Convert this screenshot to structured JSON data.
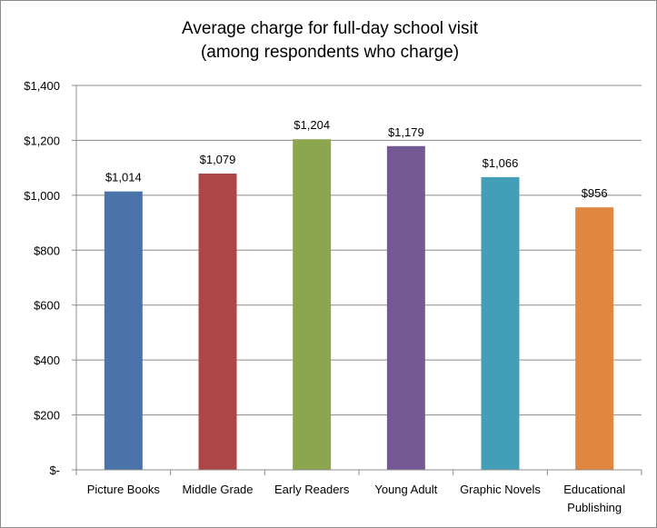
{
  "chart_data": {
    "type": "bar",
    "title": [
      "Average charge for full-day school visit",
      "(among respondents who charge)"
    ],
    "categories": [
      [
        "Picture Books"
      ],
      [
        "Middle Grade"
      ],
      [
        "Early Readers"
      ],
      [
        "Young Adult"
      ],
      [
        "Graphic Novels"
      ],
      [
        "Educational",
        "Publishing"
      ]
    ],
    "values": [
      1014,
      1079,
      1204,
      1179,
      1066,
      956
    ],
    "data_labels": [
      "$1,014",
      "$1,079",
      "$1,204",
      "$1,179",
      "$1,066",
      "$956"
    ],
    "colors": [
      "#4a73aa",
      "#ad4646",
      "#8ba64d",
      "#735893",
      "#439eb8",
      "#df8640"
    ],
    "ylim": [
      0,
      1400
    ],
    "yticks": [
      0,
      200,
      400,
      600,
      800,
      1000,
      1200,
      1400
    ],
    "ytick_labels": [
      "$-",
      "$200",
      "$400",
      "$600",
      "$800",
      "$1,000",
      "$1,200",
      "$1,400"
    ],
    "grid": true,
    "legend": false,
    "xlabel": "",
    "ylabel": ""
  }
}
